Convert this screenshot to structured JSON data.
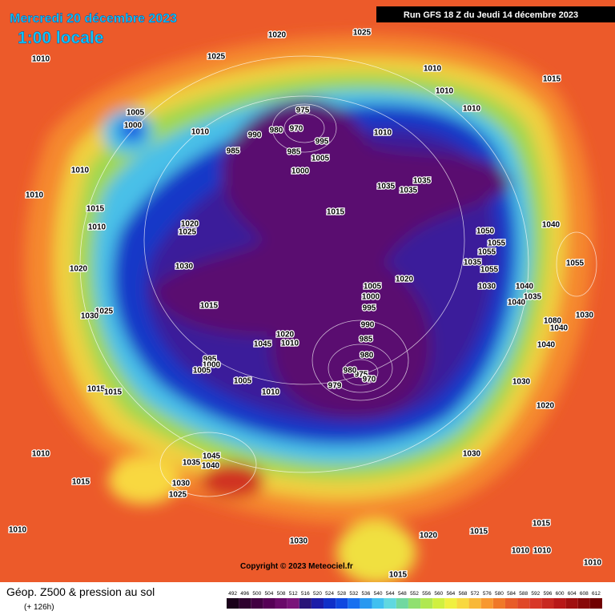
{
  "header": {
    "date": "Mercredi 20 décembre 2023",
    "time": "1:00 locale",
    "run": "Run GFS 18 Z du Jeudi 14 décembre 2023"
  },
  "map": {
    "isobars": [
      1020,
      1025,
      1010,
      1025,
      1010,
      1015,
      1010,
      1010,
      1005,
      1000,
      975,
      1010,
      980,
      970,
      990,
      995,
      1010,
      985,
      985,
      1005,
      1000,
      1010,
      1035,
      1035,
      1035,
      1010,
      1015,
      1015,
      1020,
      1025,
      1010,
      1040,
      1050,
      1055,
      1055,
      1030,
      1020,
      1035,
      1055,
      1055,
      1020,
      1005,
      1000,
      1030,
      1040,
      1035,
      1040,
      995,
      1015,
      1025,
      1030,
      1080,
      1040,
      1030,
      990,
      1020,
      1045,
      1010,
      985,
      1040,
      980,
      995,
      1000,
      1005,
      975,
      980,
      970,
      1005,
      979,
      1030,
      1015,
      1015,
      1010,
      1020,
      1030,
      1010,
      1045,
      1035,
      1040,
      1015,
      1030,
      1025,
      1010,
      1015,
      1020,
      1015,
      1030,
      1010,
      1010,
      1015,
      1010
    ],
    "copyright": "Copyright © 2023 Meteociel.fr"
  },
  "legend": {
    "title": "Géop. Z500 & pression au sol",
    "lead": "(+ 126h)",
    "scale": [
      492,
      496,
      500,
      504,
      508,
      512,
      516,
      520,
      524,
      528,
      532,
      536,
      540,
      544,
      548,
      552,
      556,
      560,
      564,
      568,
      572,
      576,
      580,
      584,
      588,
      592,
      596,
      600,
      604,
      608,
      612
    ],
    "colors": [
      "#1a001a",
      "#2e002e",
      "#420042",
      "#560056",
      "#6a0a6a",
      "#7a147a",
      "#2a1478",
      "#1c1ca8",
      "#1030c8",
      "#1048e0",
      "#1870f0",
      "#2898f0",
      "#40c0f0",
      "#60d8e0",
      "#70d8a0",
      "#90e070",
      "#b0e850",
      "#d0f040",
      "#f0f040",
      "#f8d840",
      "#f8b838",
      "#f89830",
      "#f07828",
      "#e85c28",
      "#e04828",
      "#d83828",
      "#c82820",
      "#b81818",
      "#a01010",
      "#880808",
      "#700000"
    ]
  }
}
